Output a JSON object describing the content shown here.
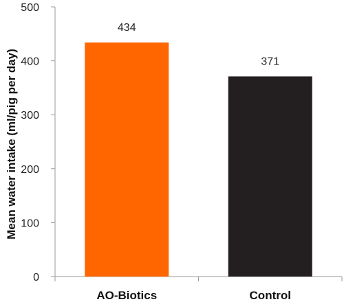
{
  "chart_data": {
    "type": "bar",
    "categories": [
      "AO-Biotics",
      "Control"
    ],
    "values": [
      434,
      371
    ],
    "data_labels": [
      "434",
      "371"
    ],
    "colors": [
      "#ff6600",
      "#231f20"
    ],
    "title": "",
    "xlabel": "",
    "ylabel": "Mean water intake (ml/pig per day)",
    "ylim": [
      0,
      500
    ],
    "yticks": [
      0,
      100,
      200,
      300,
      400,
      500
    ],
    "grid": false,
    "legend": "none"
  }
}
